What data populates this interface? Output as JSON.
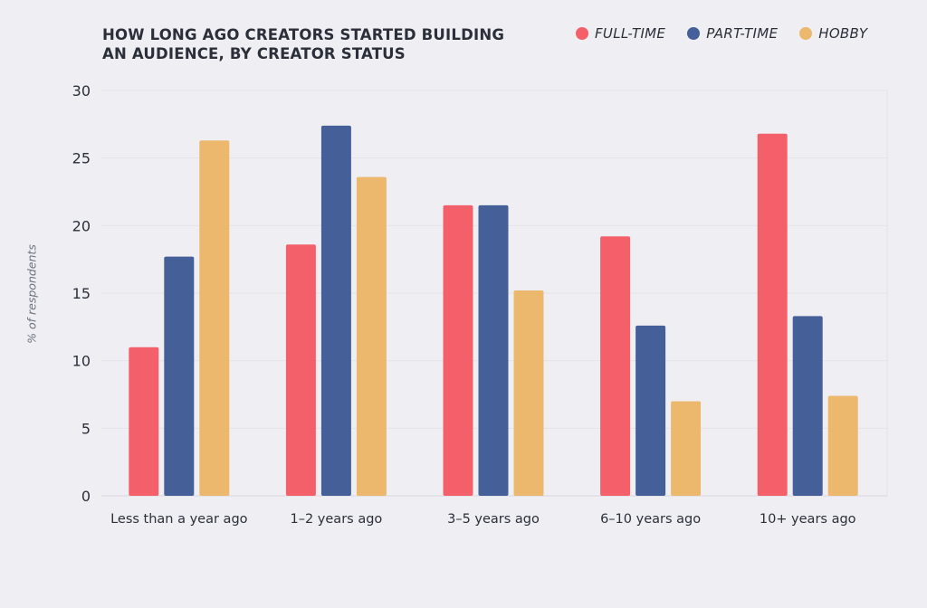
{
  "chart_data": {
    "type": "bar",
    "title": "HOW LONG AGO CREATORS STARTED BUILDING AN AUDIENCE, BY CREATOR STATUS",
    "ylabel": "% of respondents",
    "xlabel": "",
    "ylim": [
      0,
      30
    ],
    "yticks": [
      0,
      5,
      10,
      15,
      20,
      25,
      30
    ],
    "grid": true,
    "legend_position": "top-right",
    "categories": [
      "Less than a year ago",
      "1–2 years ago",
      "3–5 years ago",
      "6–10 years ago",
      "10+ years ago"
    ],
    "series": [
      {
        "name": "FULL-TIME",
        "color": "#f4606a",
        "values": [
          11.0,
          18.6,
          21.5,
          19.2,
          26.8
        ]
      },
      {
        "name": "PART-TIME",
        "color": "#455f98",
        "values": [
          17.7,
          27.4,
          21.5,
          12.6,
          13.3
        ]
      },
      {
        "name": "HOBBY",
        "color": "#ecb86e",
        "values": [
          26.3,
          23.6,
          15.2,
          7.0,
          7.4
        ]
      }
    ]
  }
}
